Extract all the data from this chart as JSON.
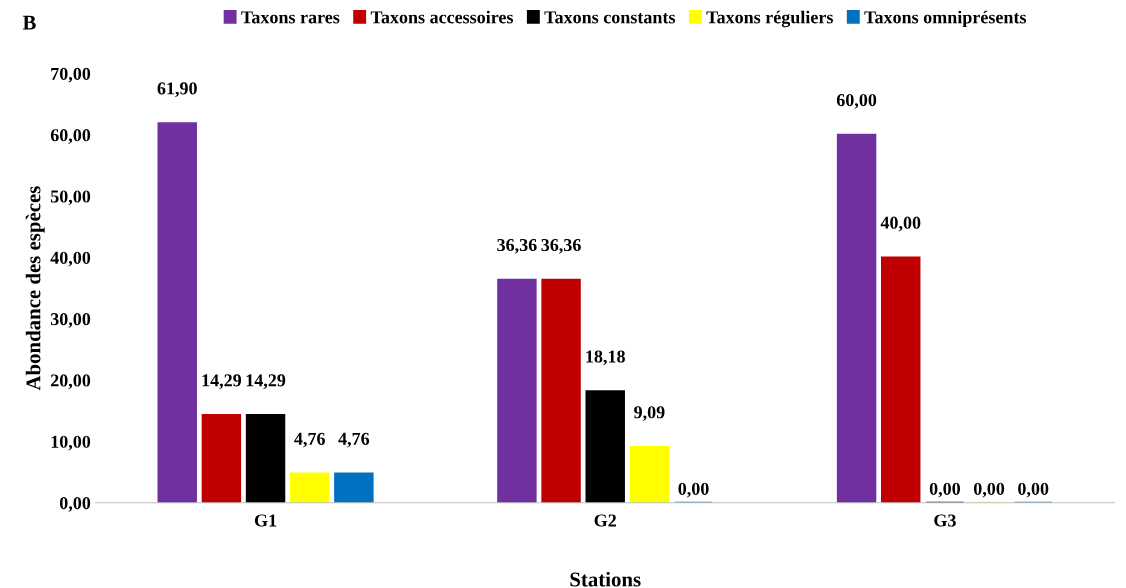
{
  "chart_data": {
    "type": "bar",
    "xlabel": "Stations",
    "ylabel": "Abondance des espèces",
    "categories": [
      "G1",
      "G2",
      "G3"
    ],
    "series": [
      {
        "name": "Taxons rares",
        "color": "#7030a0",
        "values": [
          61.9,
          36.36,
          60.0
        ],
        "value_labels": [
          "61,90",
          "36,36",
          "60,00"
        ]
      },
      {
        "name": "Taxons accessoires",
        "color": "#c00000",
        "values": [
          14.29,
          36.36,
          40.0
        ],
        "value_labels": [
          "14,29",
          "36,36",
          "40,00"
        ]
      },
      {
        "name": "Taxons constants",
        "color": "#000000",
        "values": [
          14.29,
          18.18,
          0.0
        ],
        "value_labels": [
          "14,29",
          "18,18",
          "0,00"
        ]
      },
      {
        "name": "Taxons réguliers",
        "color": "#ffff00",
        "values": [
          4.76,
          9.09,
          0.0
        ],
        "value_labels": [
          "4,76",
          "9,09",
          "0,00"
        ]
      },
      {
        "name": "Taxons omniprésents",
        "color": "#0070c0",
        "values": [
          4.76,
          0.0,
          0.0
        ],
        "value_labels": [
          "4,76",
          "0,00",
          "0,00"
        ]
      }
    ],
    "ylim": [
      0,
      70
    ],
    "yticks": [
      {
        "value": 0,
        "label": "0,00"
      },
      {
        "value": 10,
        "label": "10,00"
      },
      {
        "value": 20,
        "label": "20,00"
      },
      {
        "value": 30,
        "label": "30,00"
      },
      {
        "value": 40,
        "label": "40,00"
      },
      {
        "value": 50,
        "label": "50,00"
      },
      {
        "value": 60,
        "label": "60,00"
      },
      {
        "value": 70,
        "label": "70,00"
      }
    ],
    "grid": false,
    "legend": "top",
    "annotations": [
      "B"
    ]
  }
}
